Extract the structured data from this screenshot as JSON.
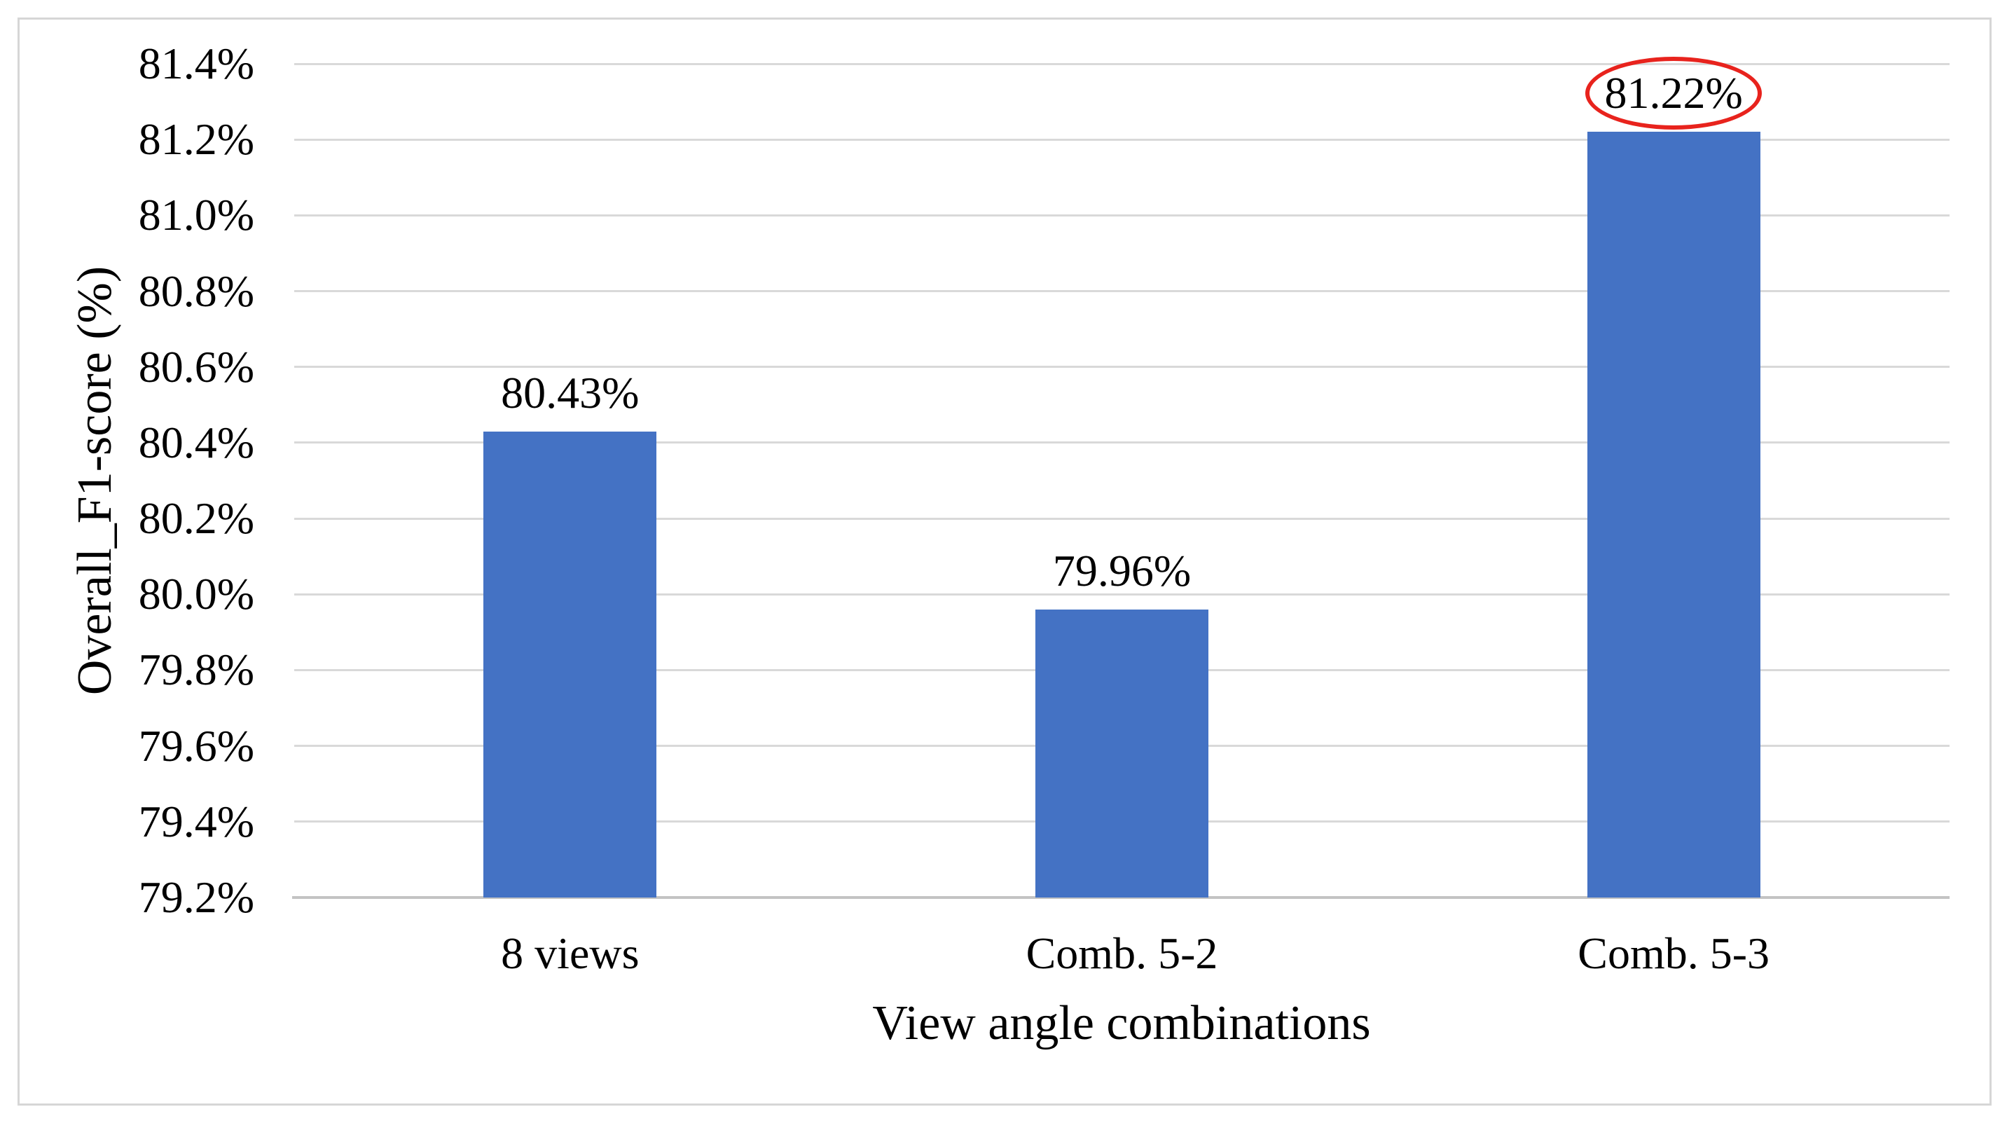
{
  "figure": {
    "background": "#ffffff",
    "border_color": "#d6d6d6"
  },
  "chart_data": {
    "type": "bar",
    "title": "",
    "xlabel": "View angle combinations",
    "ylabel": "Overall_F1-score (%)",
    "categories": [
      "8 views",
      "Comb. 5-2",
      "Comb. 5-3"
    ],
    "values": [
      80.43,
      79.96,
      81.22
    ],
    "data_labels": [
      "80.43%",
      "79.96%",
      "81.22%"
    ],
    "ylim": [
      79.2,
      81.4
    ],
    "ytick_step": 0.2,
    "y_ticks_top_to_bottom": [
      "81.4%",
      "81.2%",
      "81.0%",
      "80.8%",
      "80.6%",
      "80.4%",
      "80.2%",
      "80.0%",
      "79.8%",
      "79.6%",
      "79.4%",
      "79.2%"
    ],
    "grid": true,
    "legend": "none",
    "bar_color": "#4472c4",
    "gridline_color": "#d9d9d9",
    "axis_line_color": "#c3c3c3",
    "text_color": "#000000",
    "annotation": {
      "type": "ellipse",
      "target_index": 2,
      "target_label": "81.22%",
      "color": "#e8231d"
    }
  }
}
